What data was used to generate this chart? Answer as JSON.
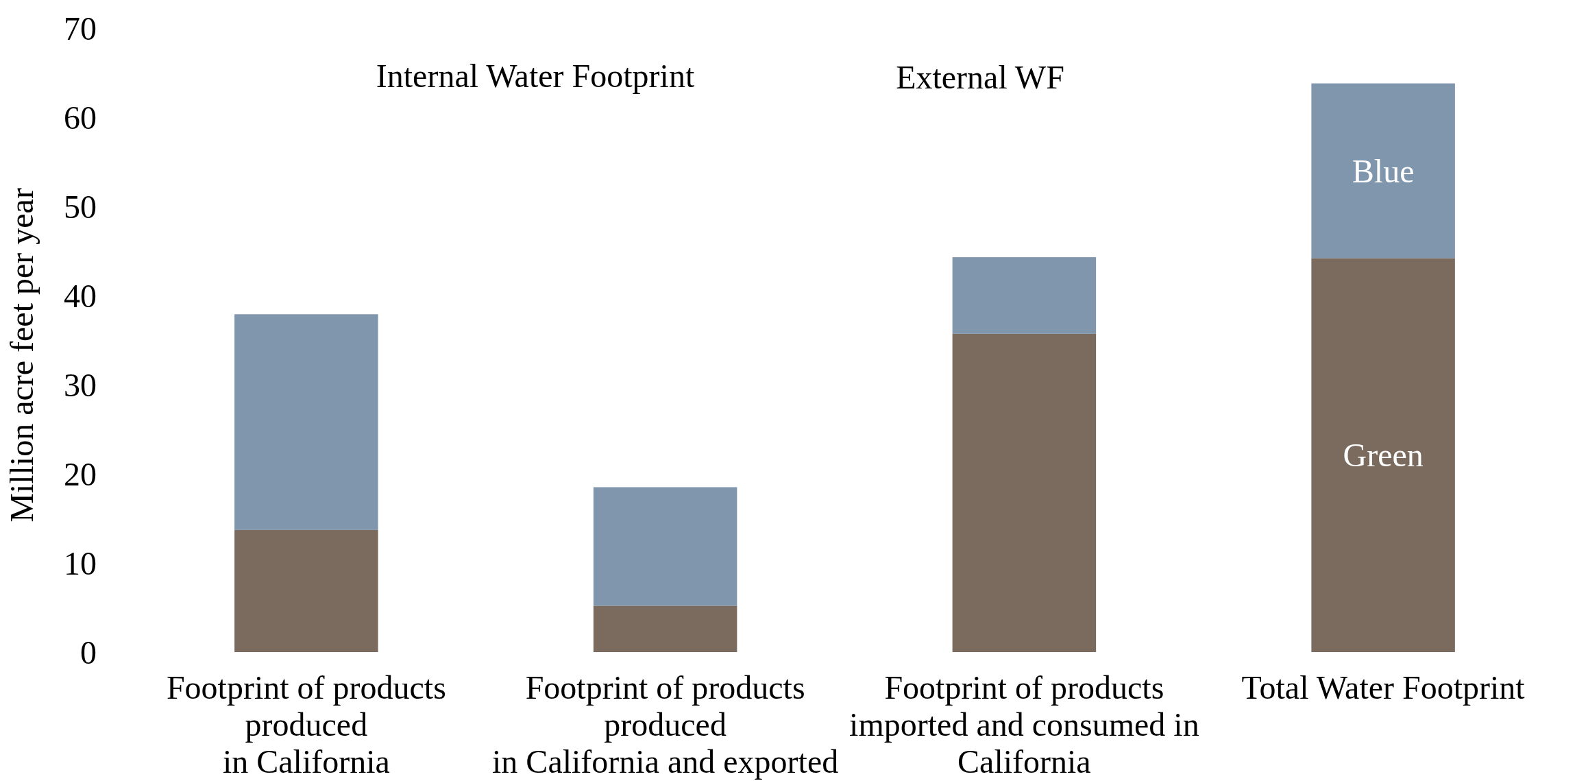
{
  "chart_data": {
    "type": "bar",
    "stacked": true,
    "ylabel": "Million acre feet per year",
    "categories": [
      "Footprint of products\nproduced\nin California",
      "Footprint of products\nproduced\nin California and exported",
      "Footprint of products\nimported and consumed in\nCalifornia",
      "Total Water Footprint"
    ],
    "series": [
      {
        "name": "Green",
        "color": "#7b6b5f",
        "values": [
          13.7,
          5.2,
          35.7,
          44.2
        ]
      },
      {
        "name": "Blue",
        "color": "#7f96ad",
        "values": [
          24.2,
          13.3,
          8.6,
          19.6
        ]
      }
    ],
    "ylim": [
      0,
      70
    ],
    "yticks": [
      0,
      10,
      20,
      30,
      40,
      50,
      60,
      70
    ],
    "annotations": [
      "Internal Water Footprint",
      "External WF"
    ]
  }
}
